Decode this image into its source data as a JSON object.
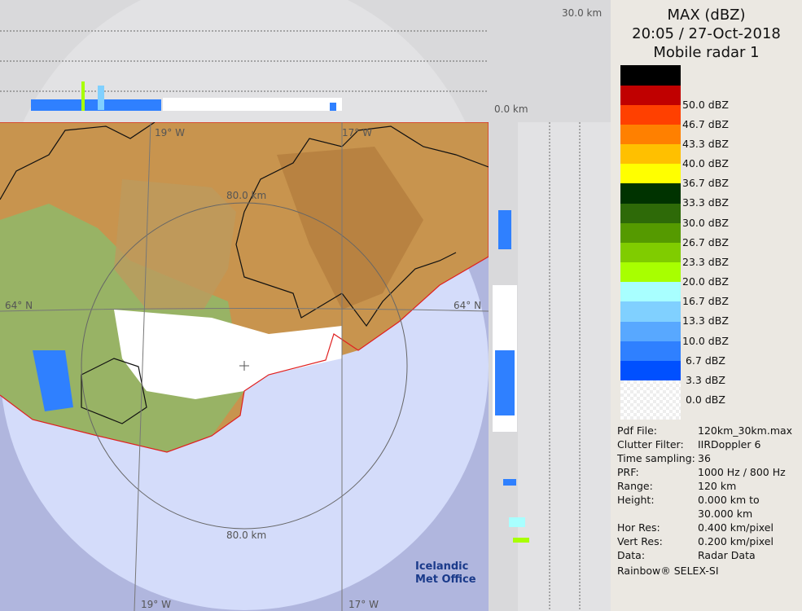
{
  "header": {
    "product": "MAX (dBZ)",
    "datetime": "20:05 / 27-Oct-2018",
    "radar": "Mobile radar 1"
  },
  "cross_sections": {
    "top_scale": "30.0 km",
    "right_scale": "0.0 km"
  },
  "map": {
    "ring_label_top": "80.0 km",
    "ring_label_bottom": "80.0 km",
    "lat_left": "64° N",
    "lat_right": "64° N",
    "lon_top_left": "19° W",
    "lon_top_right": "17° W",
    "lon_bottom_left": "19° W",
    "lon_bottom_right": "17° W",
    "logo": "Icelandic Met Office"
  },
  "legend": [
    {
      "label": "",
      "color": "#000000"
    },
    {
      "label": "50.0 dBZ",
      "color": "#c00000"
    },
    {
      "label": "46.7 dBZ",
      "color": "#ff4000"
    },
    {
      "label": "43.3 dBZ",
      "color": "#ff8000"
    },
    {
      "label": "40.0 dBZ",
      "color": "#ffc000"
    },
    {
      "label": "36.7 dBZ",
      "color": "#ffff00"
    },
    {
      "label": "33.3 dBZ",
      "color": "#003300"
    },
    {
      "label": "30.0 dBZ",
      "color": "#2e6a08"
    },
    {
      "label": "26.7 dBZ",
      "color": "#559a00"
    },
    {
      "label": "23.3 dBZ",
      "color": "#80cc00"
    },
    {
      "label": "20.0 dBZ",
      "color": "#a8ff00"
    },
    {
      "label": "16.7 dBZ",
      "color": "#a8ffff"
    },
    {
      "label": "13.3 dBZ",
      "color": "#80d0ff"
    },
    {
      "label": "10.0 dBZ",
      "color": "#58a8ff"
    },
    {
      "label": " 6.7 dBZ",
      "color": "#2f80ff"
    },
    {
      "label": " 3.3 dBZ",
      "color": "#0050ff"
    },
    {
      "label": " 0.0 dBZ",
      "color": "#ffffff"
    }
  ],
  "info": [
    {
      "k": "Pdf File:",
      "v": "120km_30km.max"
    },
    {
      "k": "Clutter Filter:",
      "v": "IIRDoppler 6"
    },
    {
      "k": "Time sampling:",
      "v": "36"
    },
    {
      "k": "PRF:",
      "v": "1000 Hz / 800 Hz"
    },
    {
      "k": "Range:",
      "v": "120 km"
    },
    {
      "k": "Height:",
      "v": "0.000 km to"
    },
    {
      "k": "",
      "v": "30.000 km"
    },
    {
      "k": "Hor Res:",
      "v": "0.400 km/pixel"
    },
    {
      "k": "Vert Res:",
      "v": "0.200 km/pixel"
    },
    {
      "k": "Data:",
      "v": "Radar Data"
    }
  ],
  "footer": "Rainbow® SELEX-SI"
}
